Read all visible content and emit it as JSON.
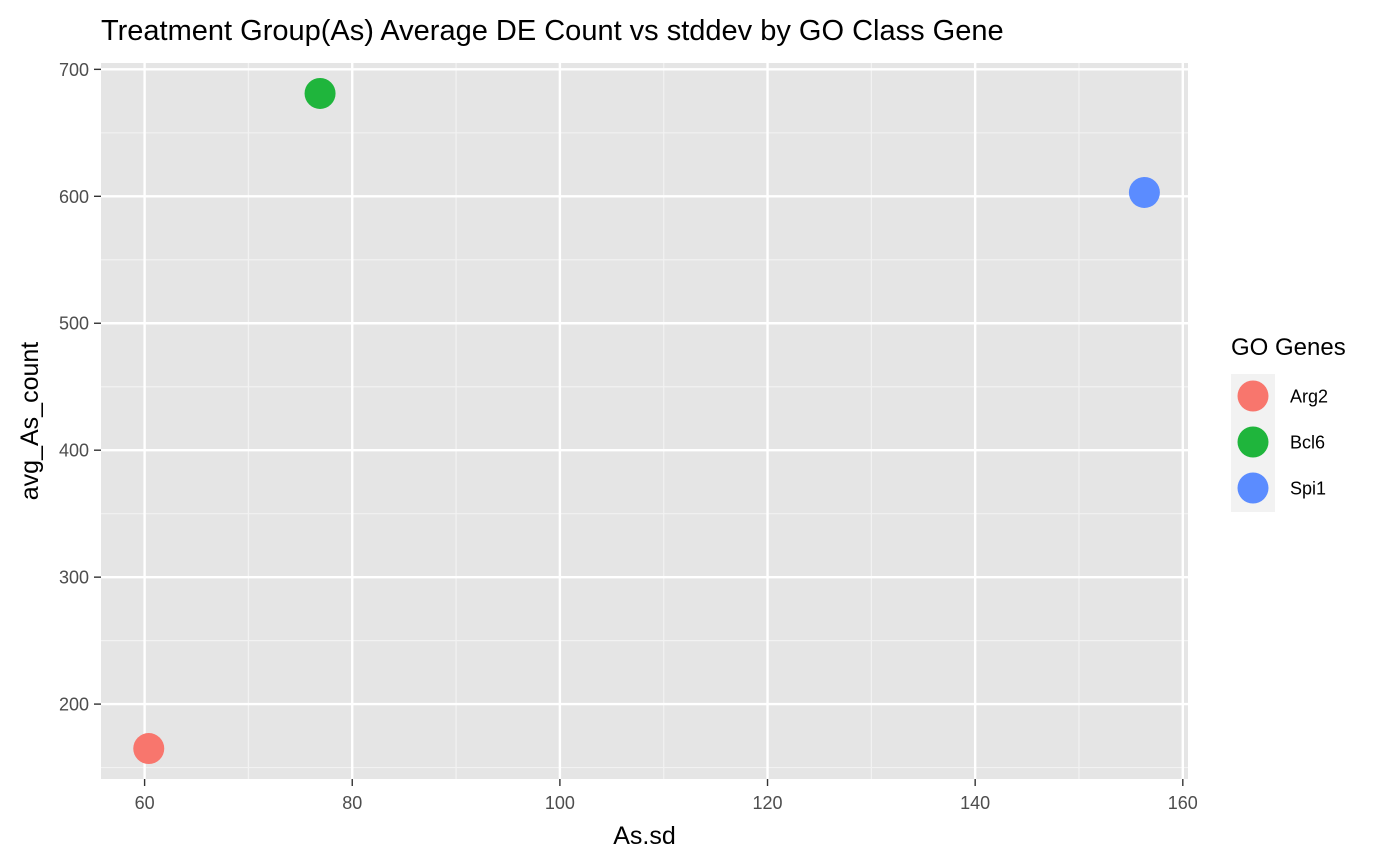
{
  "chart_data": {
    "type": "scatter",
    "title": "Treatment Group(As) Average DE Count vs stddev by GO Class Gene",
    "xlabel": "As.sd",
    "ylabel": "avg_As_count",
    "xlim": [
      55.8,
      160.5
    ],
    "ylim": [
      141,
      705
    ],
    "x_ticks": [
      60,
      80,
      100,
      120,
      140,
      160
    ],
    "y_ticks": [
      200,
      300,
      400,
      500,
      600,
      700
    ],
    "x_tick_labels": [
      "60",
      "80",
      "100",
      "120",
      "140",
      "160"
    ],
    "y_tick_labels": [
      "200",
      "300",
      "400",
      "500",
      "600",
      "700"
    ],
    "grid": true,
    "legend": {
      "title": "GO Genes",
      "position": "right"
    },
    "series": [
      {
        "name": "Arg2",
        "color": "#F8766D",
        "points": [
          {
            "x": 60.4,
            "y": 165
          }
        ]
      },
      {
        "name": "Bcl6",
        "color": "#1FB53C",
        "points": [
          {
            "x": 76.9,
            "y": 681
          }
        ]
      },
      {
        "name": "Spi1",
        "color": "#5B8CFF",
        "points": [
          {
            "x": 156.3,
            "y": 603
          }
        ]
      }
    ]
  }
}
